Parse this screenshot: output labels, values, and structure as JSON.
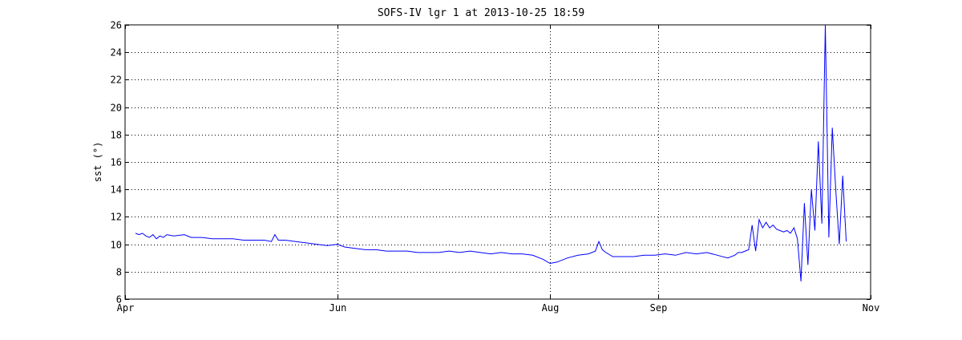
{
  "chart_data": {
    "type": "line",
    "title": "SOFS-IV lgr 1 at 2013-10-25 18:59",
    "xlabel": "",
    "ylabel": "sst (°)",
    "x_ticks": [
      "Apr",
      "Jun",
      "Aug",
      "Sep",
      "Nov"
    ],
    "x_tick_dates": [
      "2013-04-01",
      "2013-06-01",
      "2013-08-01",
      "2013-09-01",
      "2013-11-01"
    ],
    "xlim": [
      "2013-04-01",
      "2013-11-01"
    ],
    "ylim": [
      6,
      26
    ],
    "y_ticks": [
      6,
      8,
      10,
      12,
      14,
      16,
      18,
      20,
      22,
      24,
      26
    ],
    "grid": true,
    "grid_style": "dotted",
    "line_color": "#0000ff",
    "series": [
      {
        "x": [
          "2013-04-04",
          "2013-04-05",
          "2013-04-06",
          "2013-04-07",
          "2013-04-08",
          "2013-04-09",
          "2013-04-10",
          "2013-04-11",
          "2013-04-12",
          "2013-04-13",
          "2013-04-15",
          "2013-04-18",
          "2013-04-20",
          "2013-04-23",
          "2013-04-26",
          "2013-04-29",
          "2013-05-02",
          "2013-05-05",
          "2013-05-08",
          "2013-05-11",
          "2013-05-13",
          "2013-05-14",
          "2013-05-15",
          "2013-05-17",
          "2013-05-20",
          "2013-05-23",
          "2013-05-26",
          "2013-05-29",
          "2013-06-01",
          "2013-06-03",
          "2013-06-06",
          "2013-06-09",
          "2013-06-12",
          "2013-06-15",
          "2013-06-18",
          "2013-06-21",
          "2013-06-24",
          "2013-06-27",
          "2013-06-30",
          "2013-07-03",
          "2013-07-06",
          "2013-07-09",
          "2013-07-12",
          "2013-07-15",
          "2013-07-18",
          "2013-07-21",
          "2013-07-24",
          "2013-07-27",
          "2013-07-30",
          "2013-08-01",
          "2013-08-03",
          "2013-08-06",
          "2013-08-09",
          "2013-08-12",
          "2013-08-14",
          "2013-08-15",
          "2013-08-16",
          "2013-08-17",
          "2013-08-19",
          "2013-08-22",
          "2013-08-25",
          "2013-08-28",
          "2013-08-31",
          "2013-09-03",
          "2013-09-06",
          "2013-09-09",
          "2013-09-12",
          "2013-09-15",
          "2013-09-18",
          "2013-09-21",
          "2013-09-23",
          "2013-09-24",
          "2013-09-25",
          "2013-09-26",
          "2013-09-27",
          "2013-09-28",
          "2013-09-29",
          "2013-09-30",
          "2013-10-01",
          "2013-10-02",
          "2013-10-03",
          "2013-10-04",
          "2013-10-05",
          "2013-10-06",
          "2013-10-07",
          "2013-10-08",
          "2013-10-09",
          "2013-10-10",
          "2013-10-11",
          "2013-10-12",
          "2013-10-13",
          "2013-10-14",
          "2013-10-15",
          "2013-10-16",
          "2013-10-17",
          "2013-10-18",
          "2013-10-19",
          "2013-10-20",
          "2013-10-21",
          "2013-10-22",
          "2013-10-23",
          "2013-10-24",
          "2013-10-25"
        ],
        "y": [
          10.8,
          10.7,
          10.8,
          10.6,
          10.5,
          10.7,
          10.4,
          10.6,
          10.5,
          10.7,
          10.6,
          10.7,
          10.5,
          10.5,
          10.4,
          10.4,
          10.4,
          10.3,
          10.3,
          10.3,
          10.2,
          10.7,
          10.3,
          10.3,
          10.2,
          10.1,
          10.0,
          9.9,
          10.0,
          9.8,
          9.7,
          9.6,
          9.6,
          9.5,
          9.5,
          9.5,
          9.4,
          9.4,
          9.4,
          9.5,
          9.4,
          9.5,
          9.4,
          9.3,
          9.4,
          9.3,
          9.3,
          9.2,
          8.9,
          8.6,
          8.7,
          9.0,
          9.2,
          9.3,
          9.5,
          10.2,
          9.6,
          9.4,
          9.1,
          9.1,
          9.1,
          9.2,
          9.2,
          9.3,
          9.2,
          9.4,
          9.3,
          9.4,
          9.2,
          9.0,
          9.2,
          9.4,
          9.4,
          9.5,
          9.6,
          11.4,
          9.5,
          11.8,
          11.2,
          11.6,
          11.2,
          11.4,
          11.1,
          11.0,
          10.9,
          11.0,
          10.8,
          11.2,
          10.4,
          7.3,
          13.0,
          8.5,
          14.0,
          11.0,
          17.5,
          11.5,
          26.0,
          10.5,
          18.5,
          14.0,
          10.0,
          15.0,
          10.2
        ]
      }
    ]
  }
}
